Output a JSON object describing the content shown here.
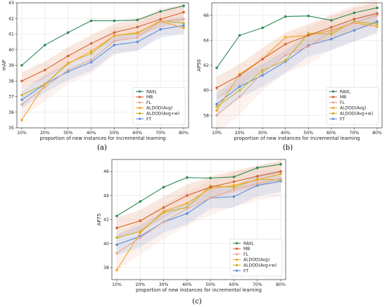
{
  "chart_data": [
    {
      "type": "line",
      "caption": "(a)",
      "xlabel": "proportion of new instances for incremental learning",
      "ylabel": "mAP",
      "categories": [
        "10%",
        "20%",
        "30%",
        "40%",
        "50%",
        "60%",
        "70%",
        "80%"
      ],
      "ylim": [
        35,
        43
      ],
      "yticks": [
        35,
        36,
        37,
        38,
        39,
        40,
        41,
        42,
        43
      ],
      "grid": true,
      "legend_position": "lower-right",
      "series": [
        {
          "name": "RAIIL",
          "color": "#2e8b57",
          "values": [
            39.0,
            40.3,
            41.1,
            41.85,
            41.85,
            41.9,
            42.45,
            42.8
          ]
        },
        {
          "name": "MB",
          "color": "#d9622b",
          "values": [
            38.0,
            38.7,
            39.6,
            40.4,
            41.1,
            41.45,
            41.95,
            42.4
          ]
        },
        {
          "name": "FL",
          "color": "#e8a893",
          "values": [
            36.5,
            37.6,
            38.7,
            39.35,
            40.55,
            40.8,
            41.8,
            41.95
          ]
        },
        {
          "name": "ALDOD(Avg)",
          "color": "#f5a623",
          "values": [
            35.5,
            37.8,
            39.1,
            39.9,
            40.9,
            41.1,
            41.8,
            41.4
          ]
        },
        {
          "name": "ALDOD(Avg+w)",
          "color": "#c8b51e",
          "values": [
            37.1,
            37.8,
            39.15,
            39.75,
            40.9,
            41.05,
            41.85,
            41.7
          ]
        },
        {
          "name": "FT",
          "color": "#5b8fd9",
          "values": [
            36.8,
            37.8,
            38.6,
            39.2,
            40.3,
            40.5,
            41.3,
            41.55
          ]
        }
      ]
    },
    {
      "type": "line",
      "caption": "(b)",
      "xlabel": "proportion of new instances for incremental learning",
      "ylabel": "AP50",
      "categories": [
        "10%",
        "20%",
        "30%",
        "40%",
        "50%",
        "60%",
        "70%",
        "80%"
      ],
      "ylim": [
        57,
        67
      ],
      "yticks": [
        58,
        60,
        62,
        64,
        66
      ],
      "grid": true,
      "legend_position": "lower-right",
      "series": [
        {
          "name": "RAIIL",
          "color": "#2e8b57",
          "values": [
            61.8,
            64.4,
            65.0,
            65.9,
            65.95,
            65.6,
            66.2,
            66.6
          ]
        },
        {
          "name": "MB",
          "color": "#d9622b",
          "values": [
            60.2,
            61.2,
            62.5,
            63.7,
            64.4,
            65.05,
            65.7,
            66.15
          ]
        },
        {
          "name": "FL",
          "color": "#e8a893",
          "values": [
            58.0,
            59.5,
            61.4,
            62.8,
            63.5,
            64.7,
            65.4,
            66.0
          ]
        },
        {
          "name": "ALDOD(Avg)",
          "color": "#f5a623",
          "values": [
            58.4,
            61.3,
            62.5,
            64.25,
            64.4,
            64.8,
            65.4,
            65.1
          ]
        },
        {
          "name": "ALDOD(Avg+w)",
          "color": "#c8b51e",
          "values": [
            58.7,
            60.0,
            61.6,
            62.4,
            64.55,
            64.5,
            65.5,
            65.3
          ]
        },
        {
          "name": "FT",
          "color": "#5b8fd9",
          "values": [
            58.9,
            60.3,
            61.2,
            62.3,
            63.6,
            64.1,
            64.8,
            65.5
          ]
        }
      ]
    },
    {
      "type": "line",
      "caption": "(c)",
      "xlabel": "proportion of new instances for incremental learning",
      "ylabel": "AP75",
      "categories": [
        "10%",
        "20%",
        "30%",
        "40%",
        "50%",
        "60%",
        "70%",
        "80%"
      ],
      "ylim": [
        37,
        47
      ],
      "yticks": [
        38,
        40,
        42,
        44,
        46
      ],
      "grid": true,
      "legend_position": "lower-right",
      "series": [
        {
          "name": "RAIIL",
          "color": "#2e8b57",
          "values": [
            42.3,
            43.5,
            44.7,
            45.5,
            45.45,
            45.55,
            46.3,
            46.6
          ]
        },
        {
          "name": "MB",
          "color": "#d9622b",
          "values": [
            41.3,
            41.9,
            43.0,
            44.0,
            44.7,
            45.15,
            45.6,
            46.0
          ]
        },
        {
          "name": "FL",
          "color": "#e8a893",
          "values": [
            39.2,
            40.5,
            41.8,
            42.9,
            43.8,
            44.5,
            45.0,
            45.4
          ]
        },
        {
          "name": "ALDOD(Avg)",
          "color": "#f5a623",
          "values": [
            37.8,
            40.9,
            42.7,
            43.35,
            44.6,
            44.85,
            45.3,
            45.8
          ]
        },
        {
          "name": "ALDOD(Avg+w)",
          "color": "#c8b51e",
          "values": [
            40.5,
            41.0,
            42.6,
            43.0,
            44.8,
            44.7,
            45.35,
            45.3
          ]
        },
        {
          "name": "FT",
          "color": "#5b8fd9",
          "values": [
            39.9,
            40.6,
            41.8,
            42.5,
            43.8,
            43.9,
            44.85,
            45.2
          ]
        }
      ]
    }
  ]
}
